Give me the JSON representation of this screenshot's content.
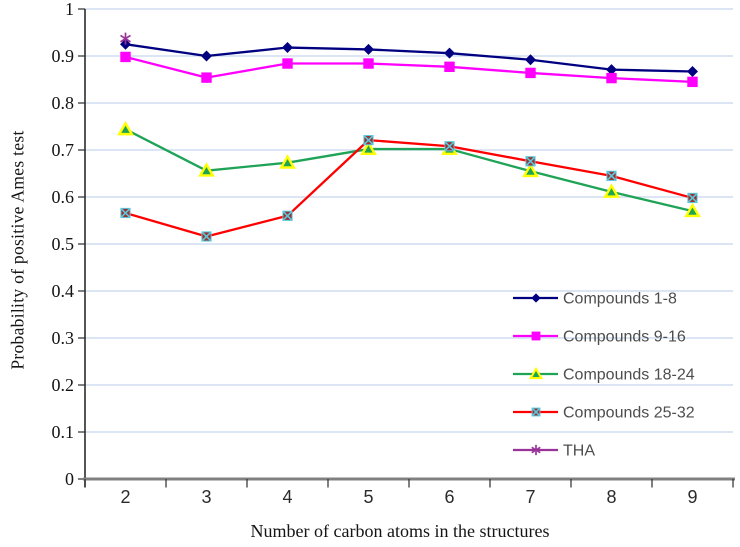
{
  "chart_data": {
    "type": "line",
    "xlabel": "Number of carbon atoms in the structures",
    "ylabel": "Probability of positive Ames test",
    "categories": [
      "2",
      "3",
      "4",
      "5",
      "6",
      "7",
      "8",
      "9"
    ],
    "ylim": [
      0,
      1
    ],
    "ytick_labels": [
      "0",
      "0.1",
      "0.2",
      "0.3",
      "0.4",
      "0.5",
      "0.6",
      "0.7",
      "0.8",
      "0.9",
      "1"
    ],
    "grid": true,
    "gridline_color": "#c5d5ee",
    "x_axis_color": "#808080",
    "y_axis_color": "#2b2b2b",
    "legend_position": "inside-bottom-right",
    "legend_text_color": "#4d4d4d",
    "series": [
      {
        "name": "Compounds 1-8",
        "color": "#000080",
        "marker": "diamond",
        "values": [
          0.925,
          0.9,
          0.918,
          0.914,
          0.906,
          0.892,
          0.871,
          0.867
        ]
      },
      {
        "name": "Compounds 9-16",
        "color": "#FF00FF",
        "marker": "square",
        "values": [
          0.898,
          0.854,
          0.884,
          0.884,
          0.877,
          0.864,
          0.853,
          0.845
        ]
      },
      {
        "name": "Compounds 18-24",
        "color": "#1FA357",
        "marker": "triangle",
        "marker_fill": "#1FA357",
        "marker_edge": "#FFFF00",
        "values": [
          0.744,
          0.656,
          0.673,
          0.702,
          0.702,
          0.655,
          0.611,
          0.57
        ]
      },
      {
        "name": "Compounds 25-32",
        "color": "#FF0000",
        "marker": "square-x",
        "marker_fill": "#993333",
        "marker_edge": "#5BC8DC",
        "values": [
          0.566,
          0.516,
          0.56,
          0.721,
          0.708,
          0.676,
          0.645,
          0.598
        ]
      },
      {
        "name": "THA",
        "color": "#993399",
        "marker": "asterisk",
        "values": [
          0.937,
          null,
          null,
          null,
          null,
          null,
          null,
          null
        ]
      }
    ]
  }
}
